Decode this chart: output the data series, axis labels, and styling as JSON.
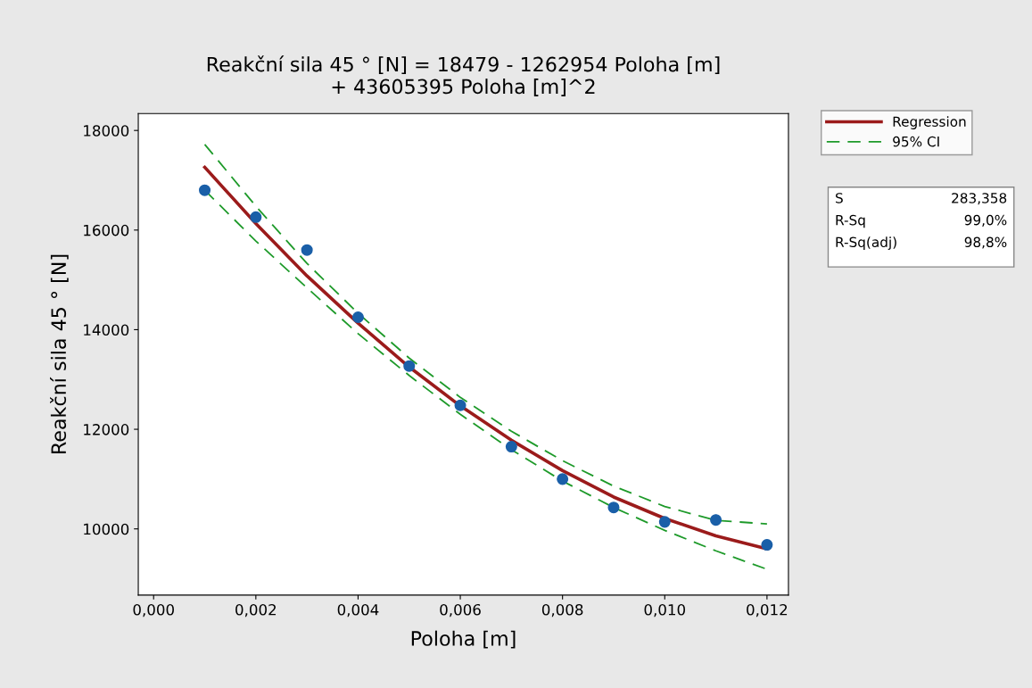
{
  "chart_data": {
    "type": "scatter",
    "title": "Reakční sila 45 ° [N] = 18479 - 1262954 Poloha [m]\n+ 43605395 Poloha [m]^2",
    "xlabel": "Poloha [m]",
    "ylabel": "Reakční sila 45 ° [N]",
    "x": [
      0.001,
      0.002,
      0.003,
      0.004,
      0.005,
      0.006,
      0.007,
      0.008,
      0.009,
      0.01,
      0.011,
      0.012
    ],
    "series": [
      {
        "color": "#1a5fa8",
        "marker": "circle",
        "values": [
          16800,
          16260,
          15600,
          14250,
          13270,
          12480,
          11650,
          11000,
          10430,
          10140,
          10180,
          9680
        ]
      },
      {
        "type": "line",
        "name": "Regression",
        "color": "#9b1b1b",
        "line_style": "solid",
        "values": [
          17260,
          16130,
          15080,
          14130,
          13250,
          12470,
          11780,
          11170,
          10640,
          10210,
          9860,
          9600
        ]
      },
      {
        "type": "line",
        "name": "95% CI",
        "color": "#1e9a2a",
        "line_style": "dashed",
        "values": [
          17720,
          16480,
          15330,
          14330,
          13430,
          12640,
          11960,
          11370,
          10860,
          10450,
          10170,
          10100
        ]
      },
      {
        "type": "line",
        "color": "#1e9a2a",
        "line_style": "dashed",
        "values": [
          16800,
          15780,
          14840,
          13920,
          13080,
          12300,
          11590,
          10960,
          10430,
          9970,
          9560,
          9190
        ]
      }
    ],
    "xlim": [
      -0.0003,
      0.01242
    ],
    "ylim": [
      8670,
      18340
    ],
    "xticks": [
      {
        "value": 0.0,
        "label": "0,000"
      },
      {
        "value": 0.002,
        "label": "0,002"
      },
      {
        "value": 0.004,
        "label": "0,004"
      },
      {
        "value": 0.006,
        "label": "0,006"
      },
      {
        "value": 0.008,
        "label": "0,008"
      },
      {
        "value": 0.01,
        "label": "0,010"
      },
      {
        "value": 0.012,
        "label": "0,012"
      }
    ],
    "yticks": [
      10000,
      12000,
      14000,
      16000,
      18000
    ],
    "grid": false,
    "legend": "top right",
    "annotations": [
      "S",
      "283,358",
      "R-Sq",
      "99,0%",
      "R-Sq(adj)",
      "98,8%"
    ]
  }
}
